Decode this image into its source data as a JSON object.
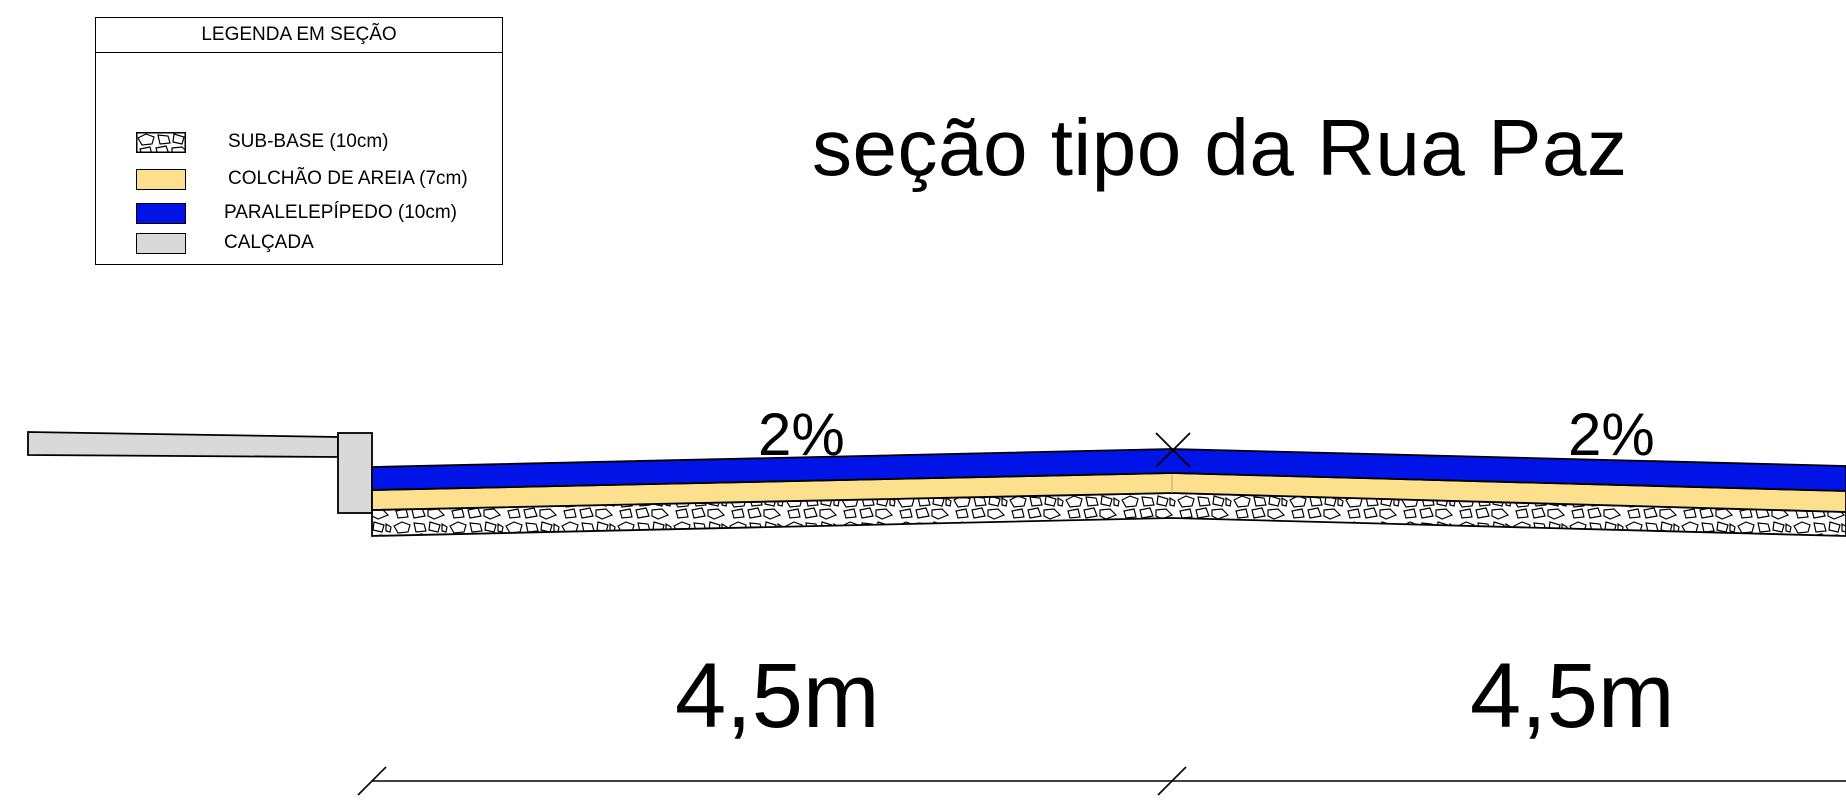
{
  "legend": {
    "title": "LEGENDA EM SEÇÃO",
    "items": [
      {
        "label": "SUB-BASE (10cm)",
        "color": "#ffffff",
        "pattern": "stone-hatch"
      },
      {
        "label": "COLCHÃO DE AREIA (7cm)",
        "color": "#fde08e"
      },
      {
        "label": "PARALELEPÍPEDO (10cm)",
        "color": "#0014e8"
      },
      {
        "label": "CALÇADA",
        "color": "#d9d9d9"
      }
    ]
  },
  "title": "seção tipo da Rua Paz",
  "slopes": {
    "left": "2%",
    "right": "2%"
  },
  "dimensions": {
    "left": "4,5m",
    "right": "4,5m"
  },
  "colors": {
    "paver": "#0014e8",
    "sand": "#fde08e",
    "sidewalk": "#d9d9d9",
    "line": "#000000"
  }
}
